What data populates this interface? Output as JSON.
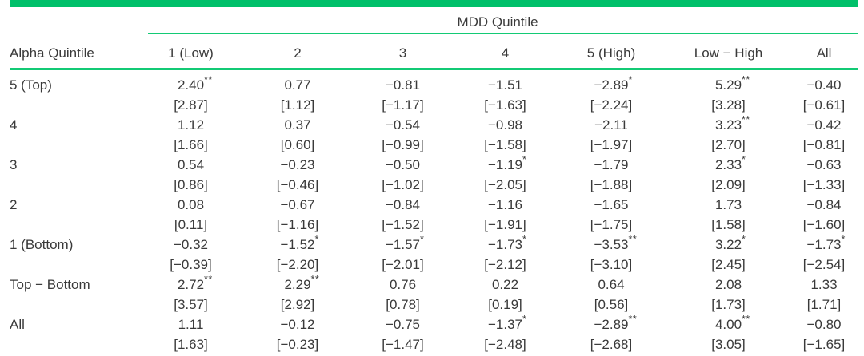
{
  "page": {
    "background": "#ffffff",
    "text_color": "#3a3a3a"
  },
  "accent": {
    "bar_color": "#00c06a",
    "rule_color": "#13ca75"
  },
  "table": {
    "group_header": "MDD Quintile",
    "row_header_label": "Alpha Quintile",
    "columns": [
      "1 (Low)",
      "2",
      "3",
      "4",
      "5 (High)",
      "Low − High",
      "All"
    ],
    "rows": [
      {
        "label": "5 (Top)",
        "values": [
          "2.40",
          "0.77",
          "−0.81",
          "−1.51",
          "−2.89",
          "5.29",
          "−0.40"
        ],
        "stars": [
          "**",
          "",
          "",
          "",
          "*",
          "**",
          ""
        ],
        "tstats": [
          "[2.87]",
          "[1.12]",
          "[−1.17]",
          "[−1.63]",
          "[−2.24]",
          "[3.28]",
          "[−0.61]"
        ]
      },
      {
        "label": "4",
        "values": [
          "1.12",
          "0.37",
          "−0.54",
          "−0.98",
          "−2.11",
          "3.23",
          "−0.42"
        ],
        "stars": [
          "",
          "",
          "",
          "",
          "",
          "**",
          ""
        ],
        "tstats": [
          "[1.66]",
          "[0.60]",
          "[−0.99]",
          "[−1.58]",
          "[−1.97]",
          "[2.70]",
          "[−0.81]"
        ]
      },
      {
        "label": "3",
        "values": [
          "0.54",
          "−0.23",
          "−0.50",
          "−1.19",
          "−1.79",
          "2.33",
          "−0.63"
        ],
        "stars": [
          "",
          "",
          "",
          "*",
          "",
          "*",
          ""
        ],
        "tstats": [
          "[0.86]",
          "[−0.46]",
          "[−1.02]",
          "[−2.05]",
          "[−1.88]",
          "[2.09]",
          "[−1.33]"
        ]
      },
      {
        "label": "2",
        "values": [
          "0.08",
          "−0.67",
          "−0.84",
          "−1.16",
          "−1.65",
          "1.73",
          "−0.84"
        ],
        "stars": [
          "",
          "",
          "",
          "",
          "",
          "",
          ""
        ],
        "tstats": [
          "[0.11]",
          "[−1.16]",
          "[−1.52]",
          "[−1.91]",
          "[−1.75]",
          "[1.58]",
          "[−1.60]"
        ]
      },
      {
        "label": "1 (Bottom)",
        "values": [
          "−0.32",
          "−1.52",
          "−1.57",
          "−1.73",
          "−3.53",
          "3.22",
          "−1.73"
        ],
        "stars": [
          "",
          "*",
          "*",
          "*",
          "**",
          "*",
          "*"
        ],
        "tstats": [
          "[−0.39]",
          "[−2.20]",
          "[−2.01]",
          "[−2.12]",
          "[−3.10]",
          "[2.45]",
          "[−2.54]"
        ]
      },
      {
        "label": "Top − Bottom",
        "values": [
          "2.72",
          "2.29",
          "0.76",
          "0.22",
          "0.64",
          "2.08",
          "1.33"
        ],
        "stars": [
          "**",
          "**",
          "",
          "",
          "",
          "",
          ""
        ],
        "tstats": [
          "[3.57]",
          "[2.92]",
          "[0.78]",
          "[0.19]",
          "[0.56]",
          "[1.73]",
          "[1.71]"
        ]
      },
      {
        "label": "All",
        "values": [
          "1.11",
          "−0.12",
          "−0.75",
          "−1.37",
          "−2.89",
          "4.00",
          "−0.80"
        ],
        "stars": [
          "",
          "",
          "",
          "*",
          "**",
          "**",
          ""
        ],
        "tstats": [
          "[1.63]",
          "[−0.23]",
          "[−1.47]",
          "[−2.48]",
          "[−2.68]",
          "[3.05]",
          "[−1.65]"
        ]
      }
    ]
  }
}
